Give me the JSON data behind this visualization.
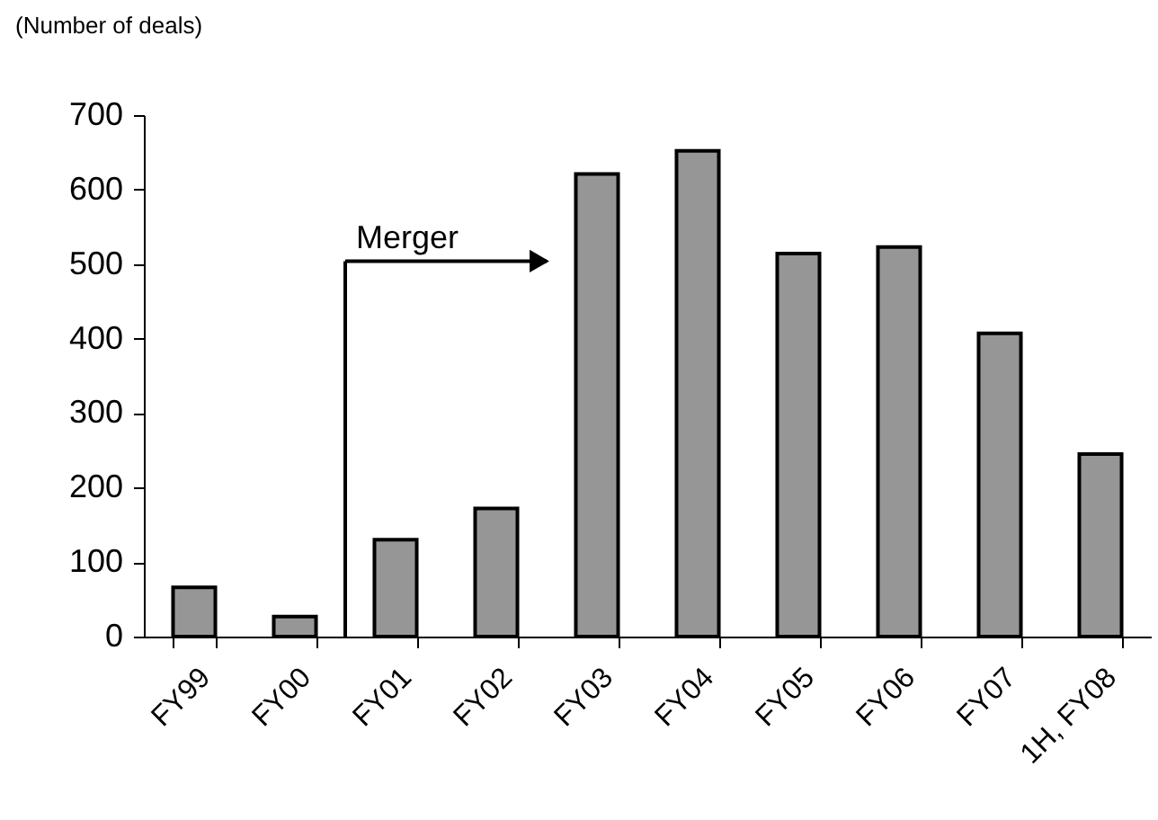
{
  "chart_data": {
    "type": "bar",
    "ylabel": "(Number of deals)",
    "categories": [
      "FY99",
      "FY00",
      "FY01",
      "FY02",
      "FY03",
      "FY04",
      "FY05",
      "FY06",
      "FY07",
      "1H, FY08"
    ],
    "values": [
      66,
      27,
      130,
      172,
      621,
      652,
      514,
      523,
      407,
      245
    ],
    "color": "#969696",
    "ylim": [
      0,
      700
    ],
    "yticks": [
      0,
      100,
      200,
      300,
      400,
      500,
      600,
      700
    ],
    "annotations": [
      "Merger"
    ]
  }
}
